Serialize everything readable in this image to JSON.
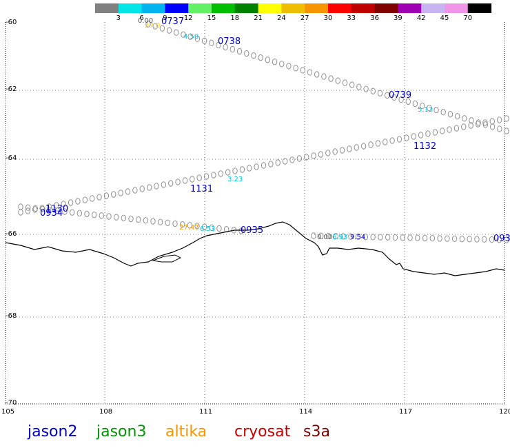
{
  "colorbar": {
    "colors": [
      "#808080",
      "#00e6e6",
      "#00b4f0",
      "#0000ff",
      "#64f064",
      "#00be00",
      "#008200",
      "#ffff00",
      "#f0be00",
      "#f59600",
      "#ff0000",
      "#be0000",
      "#800000",
      "#a000b4",
      "#c8b4f0",
      "#f096e6",
      "#000000"
    ],
    "labels": [
      "3",
      "6",
      "9",
      "12",
      "15",
      "18",
      "21",
      "24",
      "27",
      "30",
      "33",
      "36",
      "39",
      "42",
      "45",
      "70"
    ]
  },
  "axes": {
    "y_labels": [
      "-60",
      "-62",
      "-64",
      "-66",
      "-68",
      "-70"
    ],
    "x_labels": [
      "105",
      "108",
      "111",
      "114",
      "117",
      "120"
    ]
  },
  "passes": [
    "0737",
    "0738",
    "0739",
    "1132",
    "1131",
    "1130",
    "0934",
    "0935",
    "093"
  ],
  "values": [
    {
      "text": "0.00",
      "color": "#555555"
    },
    {
      "text": "27.0",
      "color": "#ffcc00"
    },
    {
      "text": "4.50",
      "color": "#00c8e6"
    },
    {
      "text": "5.13",
      "color": "#00c8e6"
    },
    {
      "text": "3.23",
      "color": "#00c8e6"
    },
    {
      "text": "27.47",
      "color": "#f59600"
    },
    {
      "text": "6.53",
      "color": "#00c8e6"
    },
    {
      "text": "6.93",
      "color": "#00c8e6"
    },
    {
      "text": "9.54",
      "color": "#0000c8"
    },
    {
      "text": "0.00",
      "color": "#555555"
    }
  ],
  "legend": [
    {
      "name": "jason2",
      "color": "#0000c8"
    },
    {
      "name": "jason3",
      "color": "#009600"
    },
    {
      "name": "altika",
      "color": "#f59600"
    },
    {
      "name": "cryosat",
      "color": "#c80000"
    },
    {
      "name": "s3a",
      "color": "#800000"
    }
  ]
}
